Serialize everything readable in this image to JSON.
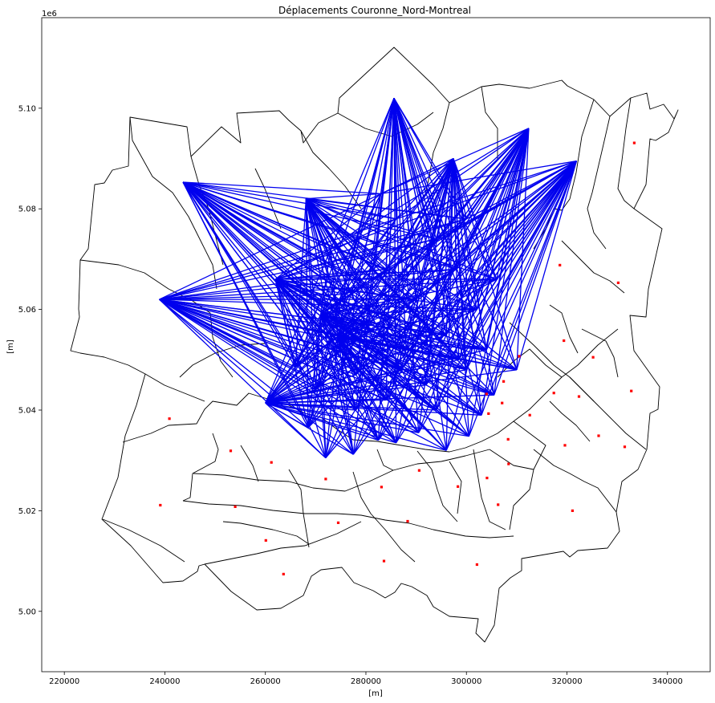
{
  "chart_data": {
    "type": "scatter",
    "title": "Déplacements Couronne_Nord-Montreal",
    "xlabel": "[m]",
    "ylabel": "[m]",
    "y_offset_label": "1e6",
    "xlim": [
      215500,
      348500
    ],
    "ylim": [
      4988000,
      5118000
    ],
    "x_ticks": [
      220000,
      240000,
      260000,
      280000,
      300000,
      320000,
      340000
    ],
    "x_tick_labels": [
      "220000",
      "240000",
      "260000",
      "280000",
      "300000",
      "320000",
      "340000"
    ],
    "y_ticks": [
      5000000,
      5020000,
      5040000,
      5060000,
      5080000,
      5100000
    ],
    "y_tick_labels": [
      "5.00",
      "5.02",
      "5.04",
      "5.06",
      "5.08",
      "5.10"
    ],
    "grid": false,
    "colors": {
      "flows": "#0000ee",
      "centroids": "#ff0000",
      "boundaries": "#000000"
    },
    "origins": [
      [
        238900,
        5062000
      ],
      [
        243600,
        5085300
      ],
      [
        268100,
        5082000
      ],
      [
        285600,
        5102000
      ],
      [
        297400,
        5090000
      ],
      [
        312400,
        5096000
      ],
      [
        321900,
        5089500
      ],
      [
        260000,
        5041400
      ],
      [
        262000,
        5066000
      ],
      [
        271000,
        5059000
      ],
      [
        274500,
        5054500
      ]
    ],
    "destinations": [
      [
        272000,
        5030500
      ],
      [
        277500,
        5031200
      ],
      [
        286000,
        5033500
      ],
      [
        296000,
        5032000
      ],
      [
        300500,
        5034800
      ],
      [
        268500,
        5036500
      ],
      [
        282500,
        5034000
      ],
      [
        290500,
        5035500
      ],
      [
        303000,
        5039000
      ],
      [
        305500,
        5043000
      ],
      [
        300000,
        5048000
      ],
      [
        292000,
        5045000
      ],
      [
        284000,
        5042000
      ],
      [
        278000,
        5047000
      ],
      [
        270000,
        5044000
      ],
      [
        288000,
        5052000
      ],
      [
        296000,
        5055000
      ],
      [
        304000,
        5052000
      ],
      [
        280000,
        5057000
      ],
      [
        302000,
        5060000
      ],
      [
        290000,
        5062000
      ],
      [
        284000,
        5068000
      ],
      [
        276000,
        5063000
      ],
      [
        298000,
        5068000
      ],
      [
        306000,
        5066000
      ],
      [
        294000,
        5074000
      ],
      [
        286000,
        5078000
      ],
      [
        300000,
        5078000
      ],
      [
        283000,
        5083000
      ],
      [
        273000,
        5072000
      ],
      [
        278000,
        5040000
      ],
      [
        294000,
        5040000
      ],
      [
        266000,
        5048500
      ],
      [
        310000,
        5048000
      ],
      [
        287000,
        5048000
      ],
      [
        298500,
        5050000
      ]
    ],
    "centroids": [
      [
        240900,
        5038300
      ],
      [
        253100,
        5031900
      ],
      [
        261200,
        5029600
      ],
      [
        239100,
        5021100
      ],
      [
        254000,
        5020800
      ],
      [
        260100,
        5014100
      ],
      [
        263600,
        5007400
      ],
      [
        272000,
        5026300
      ],
      [
        274500,
        5017600
      ],
      [
        283100,
        5024700
      ],
      [
        283600,
        5010000
      ],
      [
        288300,
        5017900
      ],
      [
        290600,
        5028000
      ],
      [
        298300,
        5024800
      ],
      [
        302100,
        5009300
      ],
      [
        304100,
        5026500
      ],
      [
        306300,
        5021200
      ],
      [
        308400,
        5029300
      ],
      [
        308300,
        5034200
      ],
      [
        304000,
        5043200
      ],
      [
        304400,
        5039300
      ],
      [
        307100,
        5041400
      ],
      [
        307400,
        5045700
      ],
      [
        310500,
        5050700
      ],
      [
        312600,
        5039000
      ],
      [
        317400,
        5043400
      ],
      [
        319600,
        5033000
      ],
      [
        322400,
        5042700
      ],
      [
        321100,
        5020000
      ],
      [
        326300,
        5034900
      ],
      [
        331500,
        5032700
      ],
      [
        332800,
        5043800
      ],
      [
        325200,
        5050500
      ],
      [
        319400,
        5053800
      ],
      [
        318600,
        5068800
      ],
      [
        330200,
        5065300
      ],
      [
        333400,
        5093100
      ]
    ]
  }
}
